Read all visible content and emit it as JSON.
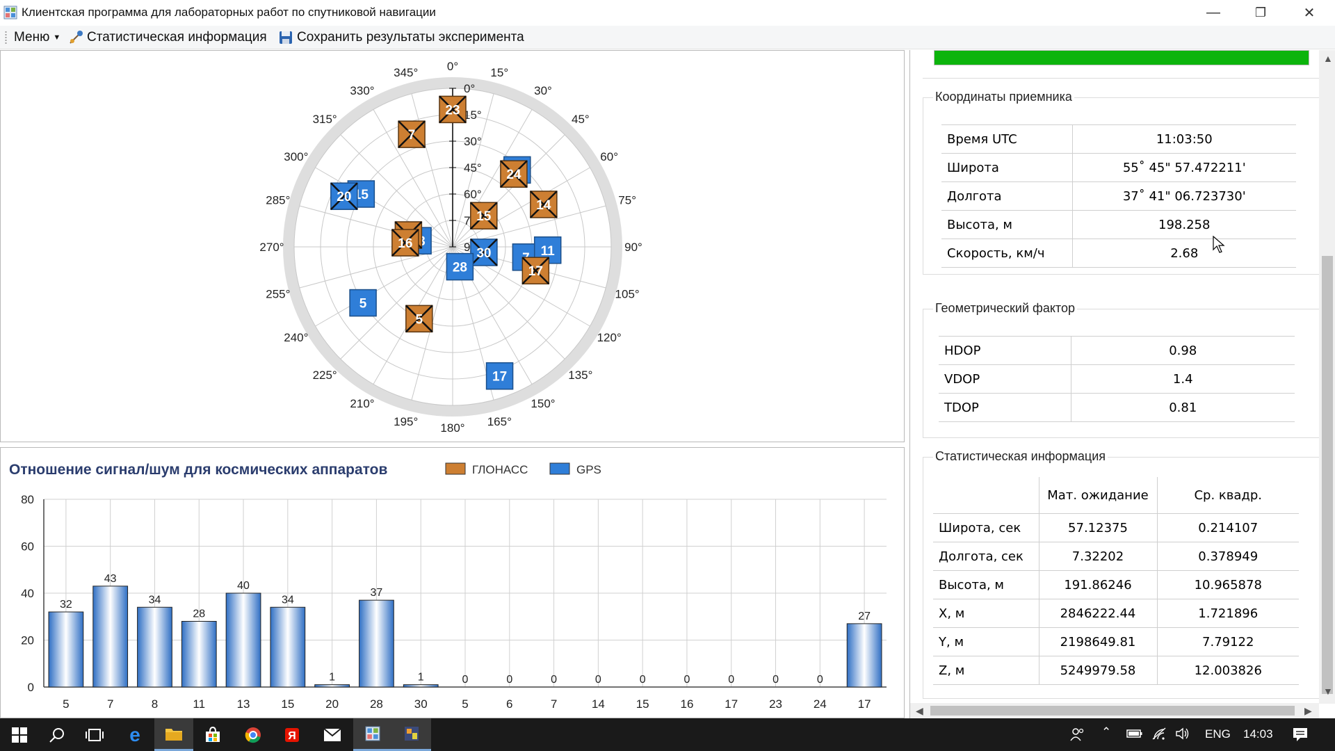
{
  "window": {
    "title": "Клиентская программа для лабораторных работ по спутниковой навигации",
    "controls": [
      "—",
      "❐",
      "✕"
    ]
  },
  "menu": {
    "menu_label": "Меню",
    "stats_label": "Статистическая информация",
    "save_label": "Сохранить результаты эксперимента"
  },
  "skyplot": {
    "azimuth_labels": [
      "0°",
      "15°",
      "30°",
      "45°",
      "60°",
      "75°",
      "90°",
      "105°",
      "120°",
      "135°",
      "150°",
      "165°",
      "180°",
      "195°",
      "210°",
      "225°",
      "240°",
      "255°",
      "270°",
      "285°",
      "300°",
      "315°",
      "330°",
      "345°"
    ],
    "elevation_labels": [
      "0°",
      "15°",
      "30°",
      "45°",
      "60°",
      "75°",
      "90°"
    ],
    "satellites": [
      {
        "id": "23",
        "system": "GLONASS",
        "az": 0,
        "el": 12,
        "used": true
      },
      {
        "id": "7",
        "system": "GLONASS",
        "az": 340,
        "el": 22,
        "used": true
      },
      {
        "id": "2",
        "system": "GPS",
        "az": 40,
        "el": 33,
        "used": false
      },
      {
        "id": "24",
        "system": "GLONASS",
        "az": 40,
        "el": 36,
        "used": true
      },
      {
        "id": "14",
        "system": "GLONASS",
        "az": 65,
        "el": 33,
        "used": true
      },
      {
        "id": "15",
        "system": "GPS",
        "az": 300,
        "el": 30,
        "used": false
      },
      {
        "id": "20",
        "system": "GPS",
        "az": 295,
        "el": 22,
        "used": true
      },
      {
        "id": "15",
        "system": "GLONASS",
        "az": 45,
        "el": 65,
        "used": true
      },
      {
        "id": "13",
        "system": "GPS",
        "az": 280,
        "el": 70,
        "used": false
      },
      {
        "id": "6",
        "system": "GLONASS",
        "az": 285,
        "el": 64,
        "used": true
      },
      {
        "id": "16",
        "system": "GLONASS",
        "az": 275,
        "el": 63,
        "used": true
      },
      {
        "id": "30",
        "system": "GPS",
        "az": 100,
        "el": 72,
        "used": true
      },
      {
        "id": "7",
        "system": "GPS",
        "az": 98,
        "el": 48,
        "used": false
      },
      {
        "id": "11",
        "system": "GPS",
        "az": 92,
        "el": 36,
        "used": false
      },
      {
        "id": "17",
        "system": "GLONASS",
        "az": 106,
        "el": 41,
        "used": true
      },
      {
        "id": "28",
        "system": "GPS",
        "az": 160,
        "el": 78,
        "used": false
      },
      {
        "id": "5",
        "system": "GPS",
        "az": 238,
        "el": 30,
        "used": false
      },
      {
        "id": "5",
        "system": "GLONASS",
        "az": 205,
        "el": 45,
        "used": true
      },
      {
        "id": "17",
        "system": "GPS",
        "az": 160,
        "el": 12,
        "used": false
      }
    ],
    "colors": {
      "glonass": "#cd7f32",
      "gps": "#2f7ed8"
    }
  },
  "snr": {
    "title": "Отношение сигнал/шум для космических аппаратов",
    "legend": [
      {
        "name": "ГЛОНАСС",
        "color": "#cd7f32"
      },
      {
        "name": "GPS",
        "color": "#2f7ed8"
      }
    ]
  },
  "chart_data": {
    "type": "bar",
    "title": "Отношение сигнал/шум для космических аппаратов",
    "categories": [
      "5",
      "7",
      "8",
      "11",
      "13",
      "15",
      "20",
      "28",
      "30",
      "5",
      "6",
      "7",
      "14",
      "15",
      "16",
      "17",
      "23",
      "24",
      "17"
    ],
    "values": [
      32,
      43,
      34,
      28,
      40,
      34,
      1,
      37,
      1,
      0,
      0,
      0,
      0,
      0,
      0,
      0,
      0,
      0,
      27
    ],
    "ylim": [
      0,
      80
    ],
    "yticks": [
      "0",
      "20",
      "40",
      "60",
      "80"
    ],
    "grid": true,
    "legend": "top"
  },
  "receiver": {
    "title": "Координаты приемника",
    "rows": [
      {
        "label": "Время UTC",
        "value": "11:03:50"
      },
      {
        "label": "Широта",
        "value": "55˚ 45\" 57.472211'"
      },
      {
        "label": "Долгота",
        "value": "37˚ 41\" 06.723730'"
      },
      {
        "label": "Высота, м",
        "value": "198.258"
      },
      {
        "label": "Скорость, км/ч",
        "value": "2.68"
      }
    ]
  },
  "dop": {
    "title": "Геометрический фактор",
    "rows": [
      {
        "label": "HDOP",
        "value": "0.98"
      },
      {
        "label": "VDOP",
        "value": "1.4"
      },
      {
        "label": "TDOP",
        "value": "0.81"
      }
    ]
  },
  "stats": {
    "title": "Статистическая информация",
    "headers": [
      "Мат. ожидание",
      "Ср. квадр."
    ],
    "rows": [
      {
        "label": "Широта, сек",
        "mean": "57.12375",
        "std": "0.214107"
      },
      {
        "label": "Долгота, сек",
        "mean": "7.32202",
        "std": "0.378949"
      },
      {
        "label": "Высота, м",
        "mean": "191.86246",
        "std": "10.965878"
      },
      {
        "label": "X, м",
        "mean": "2846222.44",
        "std": "1.721896"
      },
      {
        "label": "Y, м",
        "mean": "2198649.81",
        "std": "7.79122"
      },
      {
        "label": "Z, м",
        "mean": "5249979.58",
        "std": "12.003826"
      }
    ]
  },
  "progress": {
    "fraction": 1.0,
    "color": "#0cb40c"
  },
  "taskbar": {
    "language": "ENG",
    "time": "14:03"
  }
}
